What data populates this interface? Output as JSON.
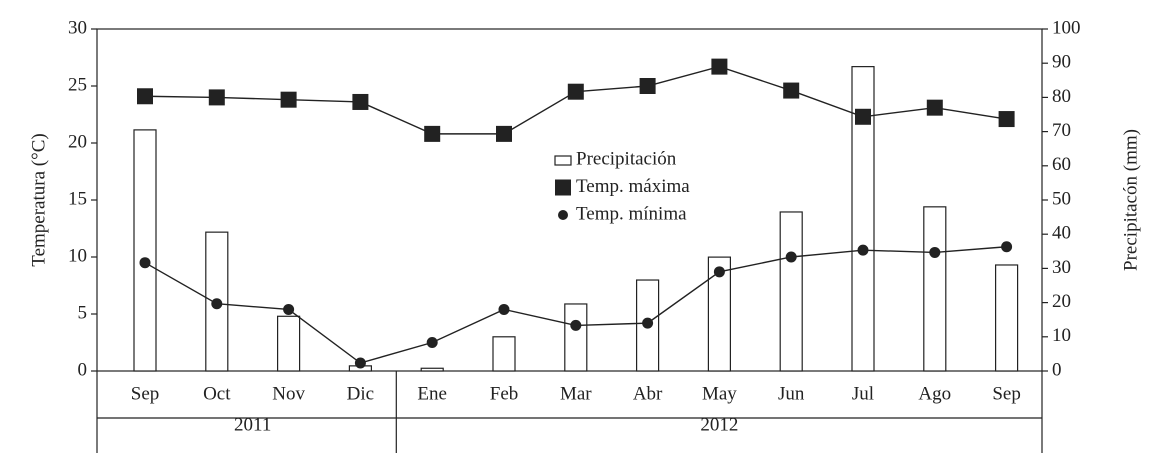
{
  "chart_data": {
    "type": "bar-line",
    "categories": [
      "Sep",
      "Oct",
      "Nov",
      "Dic",
      "Ene",
      "Feb",
      "Mar",
      "Abr",
      "May",
      "Jun",
      "Jul",
      "Ago",
      "Sep"
    ],
    "groups": [
      {
        "label": "2011",
        "count": 4
      },
      {
        "label": "2012",
        "count": 9
      }
    ],
    "ylabel": "Temperatura (°C)",
    "y2label": "Precipitacón (mm)",
    "ylim": [
      0,
      30
    ],
    "yticks": [
      0,
      5,
      10,
      15,
      20,
      25,
      30
    ],
    "y2lim": [
      0,
      100
    ],
    "y2ticks": [
      0,
      10,
      20,
      30,
      40,
      50,
      60,
      70,
      80,
      90,
      100
    ],
    "series": [
      {
        "name": "Precipitación",
        "type": "bar",
        "axis": "y2",
        "color": "#ffffff",
        "values": [
          70.5,
          40.6,
          16,
          1.5,
          0.8,
          10,
          19.6,
          26.6,
          33.3,
          46.5,
          89,
          48,
          31
        ]
      },
      {
        "name": "Temp. máxima",
        "type": "line",
        "marker": "square",
        "color": "#222222",
        "values": [
          24.1,
          24.0,
          23.8,
          23.6,
          20.8,
          20.8,
          24.5,
          25.0,
          26.7,
          24.6,
          22.3,
          23.1,
          22.1
        ]
      },
      {
        "name": "Temp. mínima",
        "type": "line",
        "marker": "circle",
        "color": "#222222",
        "values": [
          9.5,
          5.9,
          5.4,
          0.7,
          2.5,
          5.4,
          4.0,
          4.2,
          8.7,
          10.0,
          10.6,
          10.4,
          10.9
        ]
      }
    ]
  }
}
